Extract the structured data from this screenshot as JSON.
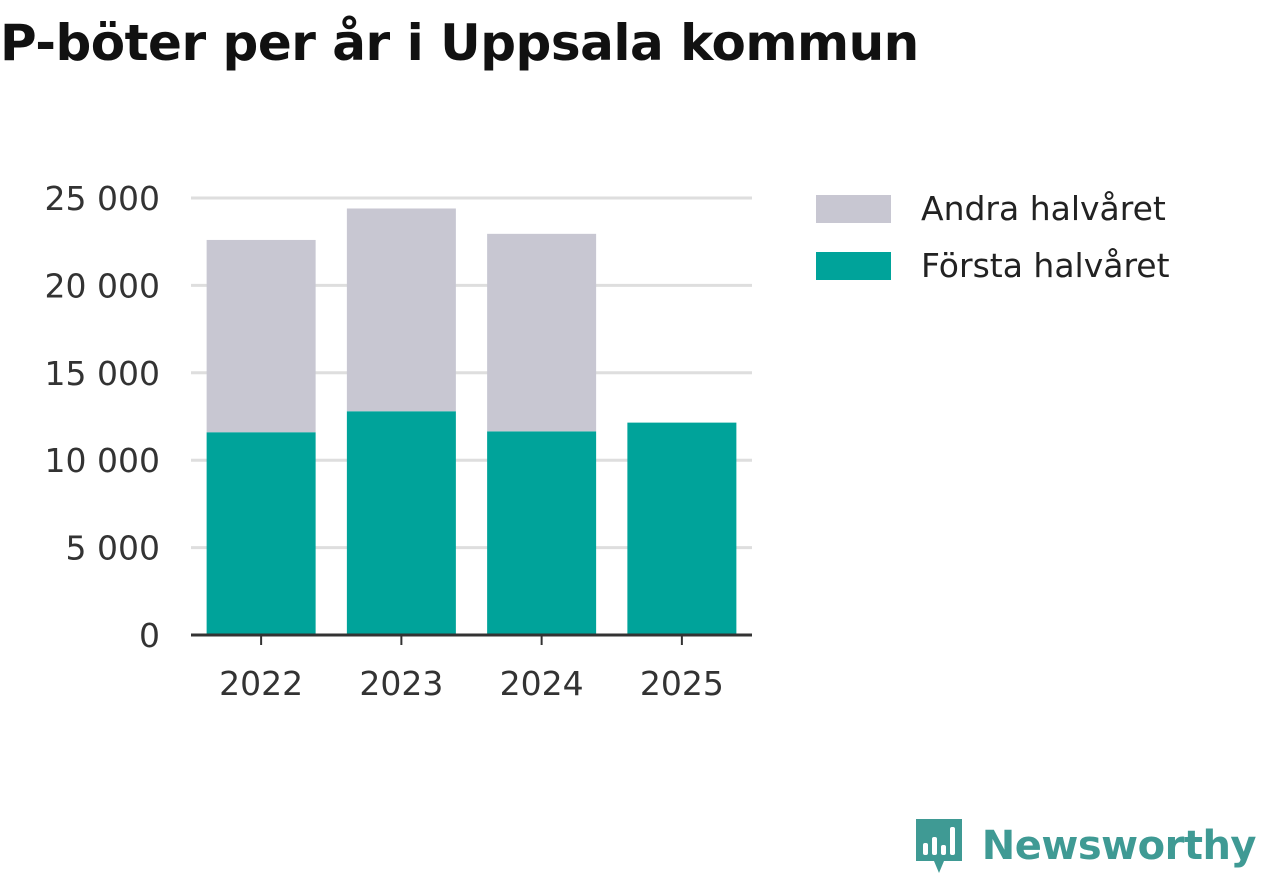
{
  "title": "P-böter per år i Uppsala kommun",
  "brand": {
    "name": "Newsworthy",
    "icon": "newsworthy-logo-icon",
    "color": "#3f9a94"
  },
  "legend": [
    {
      "label": "Andra halvåret",
      "color": "#c8c7d2"
    },
    {
      "label": "Första halvåret",
      "color": "#00a39a"
    }
  ],
  "chart_data": {
    "type": "bar",
    "stacked": true,
    "title": "P-böter per år i Uppsala kommun",
    "xlabel": "",
    "ylabel": "",
    "categories": [
      "2022",
      "2023",
      "2024",
      "2025"
    ],
    "series": [
      {
        "name": "Första halvåret",
        "color": "#00a39a",
        "values": [
          11600,
          12800,
          11650,
          12150
        ]
      },
      {
        "name": "Andra halvåret",
        "color": "#c8c7d2",
        "values": [
          11000,
          11600,
          11300,
          null
        ]
      }
    ],
    "ylim": [
      0,
      25000
    ],
    "yticks": [
      0,
      5000,
      10000,
      15000,
      20000,
      25000
    ],
    "ytick_labels": [
      "0",
      "5 000",
      "10 000",
      "15 000",
      "20 000",
      "25 000"
    ],
    "grid": true,
    "legend_position": "right"
  }
}
